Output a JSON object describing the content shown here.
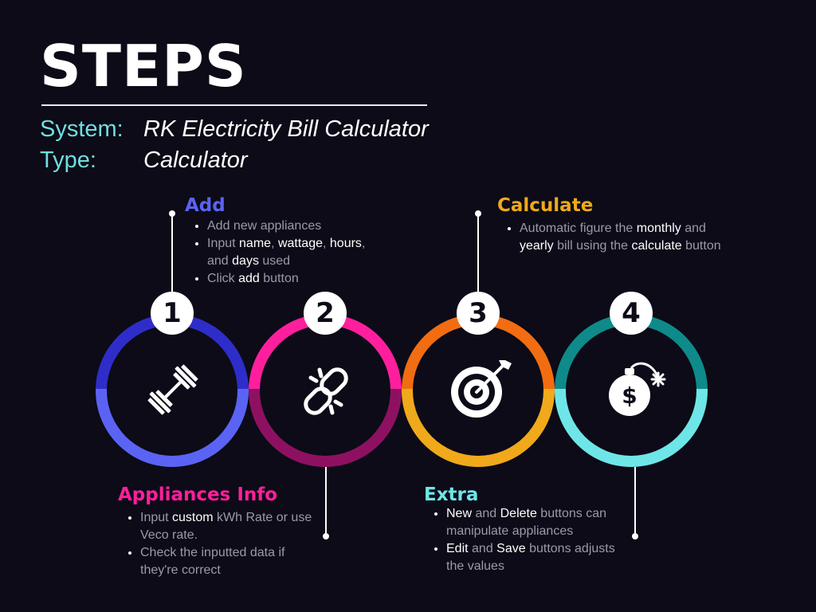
{
  "title": "STEPS",
  "meta": {
    "system_label": "System:",
    "system_value": "RK Electricity Bill Calculator",
    "type_label": "Type:",
    "type_value": "Calculator"
  },
  "colors": {
    "step1": [
      "#2f2dc9",
      "#5b63f5"
    ],
    "step2": [
      "#ff1f9c",
      "#8e1161"
    ],
    "step3": [
      "#f26c12",
      "#f0a91a"
    ],
    "step4": [
      "#0e8a8a",
      "#6ee6e8"
    ]
  },
  "steps": [
    {
      "number": "1",
      "heading": "Add",
      "icon": "dumbbell-icon",
      "bullets": [
        [
          {
            "t": "Add new appliances"
          }
        ],
        [
          {
            "t": "Input "
          },
          {
            "t": "name",
            "b": true
          },
          {
            "t": ", "
          },
          {
            "t": "wattage",
            "b": true
          },
          {
            "t": ", "
          },
          {
            "t": "hours",
            "b": true
          },
          {
            "t": ", and "
          },
          {
            "t": "days",
            "b": true
          },
          {
            "t": " used"
          }
        ],
        [
          {
            "t": "Click "
          },
          {
            "t": "add",
            "b": true
          },
          {
            "t": " button"
          }
        ]
      ]
    },
    {
      "number": "2",
      "heading": "Appliances Info",
      "icon": "broken-link-icon",
      "bullets": [
        [
          {
            "t": "Input "
          },
          {
            "t": "custom",
            "b": true
          },
          {
            "t": " kWh Rate or use Veco rate."
          }
        ],
        [
          {
            "t": "Check the inputted data if they're correct"
          }
        ]
      ]
    },
    {
      "number": "3",
      "heading": "Calculate",
      "icon": "target-icon",
      "bullets": [
        [
          {
            "t": "Automatic figure the "
          },
          {
            "t": "monthly",
            "b": true
          },
          {
            "t": " and "
          },
          {
            "t": "yearly",
            "b": true
          },
          {
            "t": " bill using the "
          },
          {
            "t": "calculate",
            "b": true
          },
          {
            "t": " button"
          }
        ]
      ]
    },
    {
      "number": "4",
      "heading": "Extra",
      "icon": "money-bomb-icon",
      "bullets": [
        [
          {
            "t": "New",
            "b": true
          },
          {
            "t": " and "
          },
          {
            "t": "Delete",
            "b": true
          },
          {
            "t": " buttons can manipulate appliances"
          }
        ],
        [
          {
            "t": "Edit",
            "b": true
          },
          {
            "t": " and "
          },
          {
            "t": "Save",
            "b": true
          },
          {
            "t": " buttons adjusts the values"
          }
        ]
      ]
    }
  ]
}
